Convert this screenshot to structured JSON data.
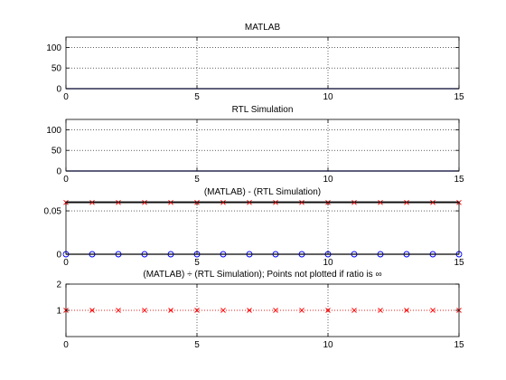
{
  "figure": {
    "background": "#ffffff",
    "axes_color": "#000000",
    "grid_color": "#000000",
    "red_color": "#ff0000",
    "blue_color": "#0000ff",
    "navy_color": "#00007f"
  },
  "chart_data": [
    {
      "type": "line",
      "title": "MATLAB",
      "xlabel": "",
      "ylabel": "",
      "xlim": [
        0,
        15
      ],
      "ylim": [
        0,
        125
      ],
      "xticks": [
        "0",
        "5",
        "10",
        "15"
      ],
      "yticks": [
        "0",
        "50",
        "100"
      ],
      "ytick_values": [
        0,
        50,
        100
      ],
      "grid": true,
      "series": [
        {
          "x": [
            0,
            15
          ],
          "values": [
            0,
            0
          ],
          "color": "#00007f",
          "style": "solid",
          "marker": "none"
        }
      ]
    },
    {
      "type": "line",
      "title": "RTL Simulation",
      "xlabel": "",
      "ylabel": "",
      "xlim": [
        0,
        15
      ],
      "ylim": [
        0,
        125
      ],
      "xticks": [
        "0",
        "5",
        "10",
        "15"
      ],
      "yticks": [
        "0",
        "50",
        "100"
      ],
      "ytick_values": [
        0,
        50,
        100
      ],
      "grid": true,
      "series": [
        {
          "x": [
            0,
            15
          ],
          "values": [
            0,
            0
          ],
          "color": "#00007f",
          "style": "solid",
          "marker": "none"
        }
      ]
    },
    {
      "type": "scatter",
      "title": "(MATLAB) - (RTL Simulation)",
      "xlabel": "",
      "ylabel": "",
      "xlim": [
        0,
        15
      ],
      "ylim": [
        0,
        0.0605
      ],
      "xticks": [
        "0",
        "5",
        "10",
        "15"
      ],
      "yticks": [
        "0",
        "0.05"
      ],
      "ytick_values": [
        0,
        0.05
      ],
      "grid": true,
      "series": [
        {
          "x": [
            0,
            15
          ],
          "values": [
            0.0596,
            0.0596
          ],
          "color": "#000000",
          "style": "solid",
          "marker": "none"
        },
        {
          "x": [
            0,
            1,
            2,
            3,
            4,
            5,
            6,
            7,
            8,
            9,
            10,
            11,
            12,
            13,
            14,
            15
          ],
          "values": [
            0.0596,
            0.0596,
            0.0596,
            0.0596,
            0.0596,
            0.0596,
            0.0596,
            0.0596,
            0.0596,
            0.0596,
            0.0596,
            0.0596,
            0.0596,
            0.0596,
            0.0596,
            0.0596
          ],
          "color": "#ff0000",
          "style": "none",
          "marker": "x"
        },
        {
          "x": [
            0,
            15
          ],
          "values": [
            0,
            0
          ],
          "color": "#000000",
          "style": "solid",
          "marker": "none"
        },
        {
          "x": [
            0,
            1,
            2,
            3,
            4,
            5,
            6,
            7,
            8,
            9,
            10,
            11,
            12,
            13,
            14,
            15
          ],
          "values": [
            0,
            0,
            0,
            0,
            0,
            0,
            0,
            0,
            0,
            0,
            0,
            0,
            0,
            0,
            0,
            0
          ],
          "color": "#0000ff",
          "style": "none",
          "marker": "o"
        }
      ]
    },
    {
      "type": "scatter",
      "title": "(MATLAB) ÷ (RTL Simulation); Points not plotted if ratio is ∞",
      "xlabel": "",
      "ylabel": "",
      "xlim": [
        0,
        15
      ],
      "ylim": [
        0,
        2
      ],
      "xticks": [
        "0",
        "5",
        "10",
        "15"
      ],
      "yticks": [
        "1",
        "2"
      ],
      "ytick_values": [
        1,
        2
      ],
      "grid": true,
      "series": [
        {
          "x": [
            0,
            1,
            2,
            3,
            4,
            5,
            6,
            7,
            8,
            9,
            10,
            11,
            12,
            13,
            14,
            15
          ],
          "values": [
            1,
            1,
            1,
            1,
            1,
            1,
            1,
            1,
            1,
            1,
            1,
            1,
            1,
            1,
            1,
            1
          ],
          "color": "#ff0000",
          "style": "dotted",
          "marker": "x"
        }
      ]
    }
  ]
}
